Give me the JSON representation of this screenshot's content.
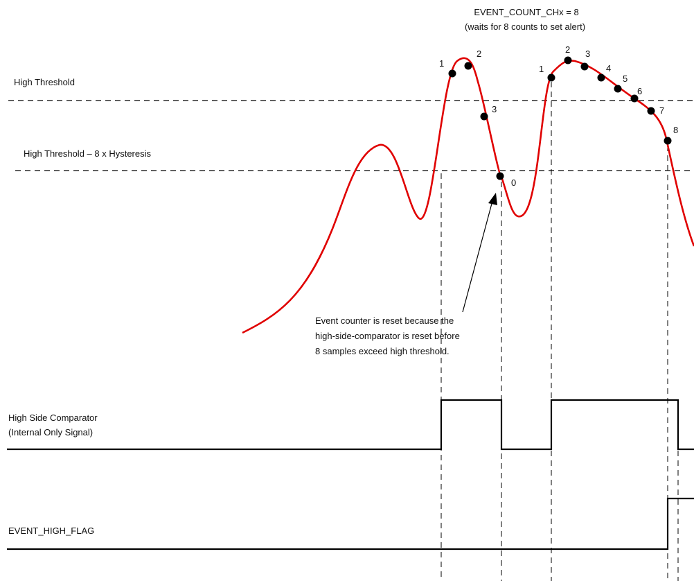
{
  "header": {
    "event_count_setting": "EVENT_COUNT_CHx  = 8",
    "event_count_note": "(waits for 8 counts to set alert)"
  },
  "thresholds": {
    "high_threshold_label": "High Threshold",
    "high_threshold_hyst_label": "High Threshold – 8 x Hysteresis"
  },
  "first_excursion_counts": [
    "1",
    "2",
    "3",
    "0"
  ],
  "second_excursion_counts": [
    "1",
    "2",
    "3",
    "4",
    "5",
    "6",
    "7",
    "8"
  ],
  "annotation": {
    "lines": [
      "Event counter is reset because the",
      "high-side-comparator is reset before",
      "8 samples exceed high threshold."
    ]
  },
  "signals": {
    "comparator_label_line1": "High Side Comparator",
    "comparator_label_line2": "(Internal Only Signal)",
    "flag_label": "EVENT_HIGH_FLAG"
  },
  "colors": {
    "waveform": "#e00000",
    "ink": "#000000"
  }
}
